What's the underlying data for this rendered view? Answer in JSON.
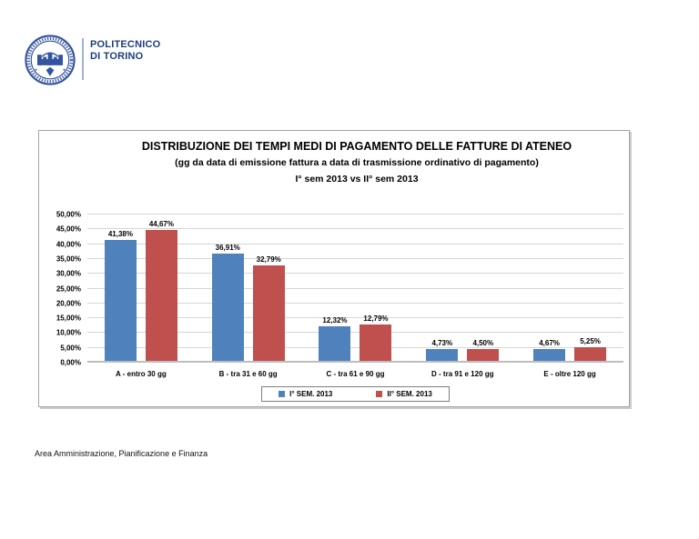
{
  "logo": {
    "line1": "POLITECNICO",
    "line2": "DI TORINO"
  },
  "footer": {
    "text": "Area Amministrazione, Pianificazione e Finanza"
  },
  "colors": {
    "series1": "#4F81BD",
    "series2": "#C0504D",
    "logo_blue": "#33549f",
    "gridline": "#d6d6d6",
    "axis_line": "#bdbdbd"
  },
  "chart_data": {
    "type": "bar",
    "title": "DISTRIBUZIONE DEI TEMPI MEDI DI PAGAMENTO DELLE FATTURE DI ATENEO",
    "subtitle": "(gg da data di emissione fattura a data di trasmissione ordinativo di pagamento)",
    "subtitle2": "I° sem 2013  vs II° sem 2013",
    "categories": [
      "A - entro 30 gg",
      "B - tra 31 e 60 gg",
      "C - tra 61 e 90 gg",
      "D - tra 91 e 120 gg",
      "E - oltre 120 gg"
    ],
    "series": [
      {
        "name": "I° SEM. 2013",
        "color": "#4F81BD",
        "values": [
          41.38,
          36.91,
          12.32,
          4.73,
          4.67
        ],
        "labels": [
          "41,38%",
          "36,91%",
          "12,32%",
          "4,73%",
          "4,67%"
        ]
      },
      {
        "name": "II° SEM. 2013",
        "color": "#C0504D",
        "values": [
          44.67,
          32.79,
          12.79,
          4.5,
          5.25
        ],
        "labels": [
          "44,67%",
          "32,79%",
          "12,79%",
          "4,50%",
          "5,25%"
        ]
      }
    ],
    "y_axis": {
      "min": 0,
      "max": 50,
      "step": 5,
      "tick_labels": [
        "0,00%",
        "5,00%",
        "10,00%",
        "15,00%",
        "20,00%",
        "25,00%",
        "30,00%",
        "35,00%",
        "40,00%",
        "45,00%",
        "50,00%"
      ]
    },
    "grid": true,
    "legend_position": "bottom"
  }
}
